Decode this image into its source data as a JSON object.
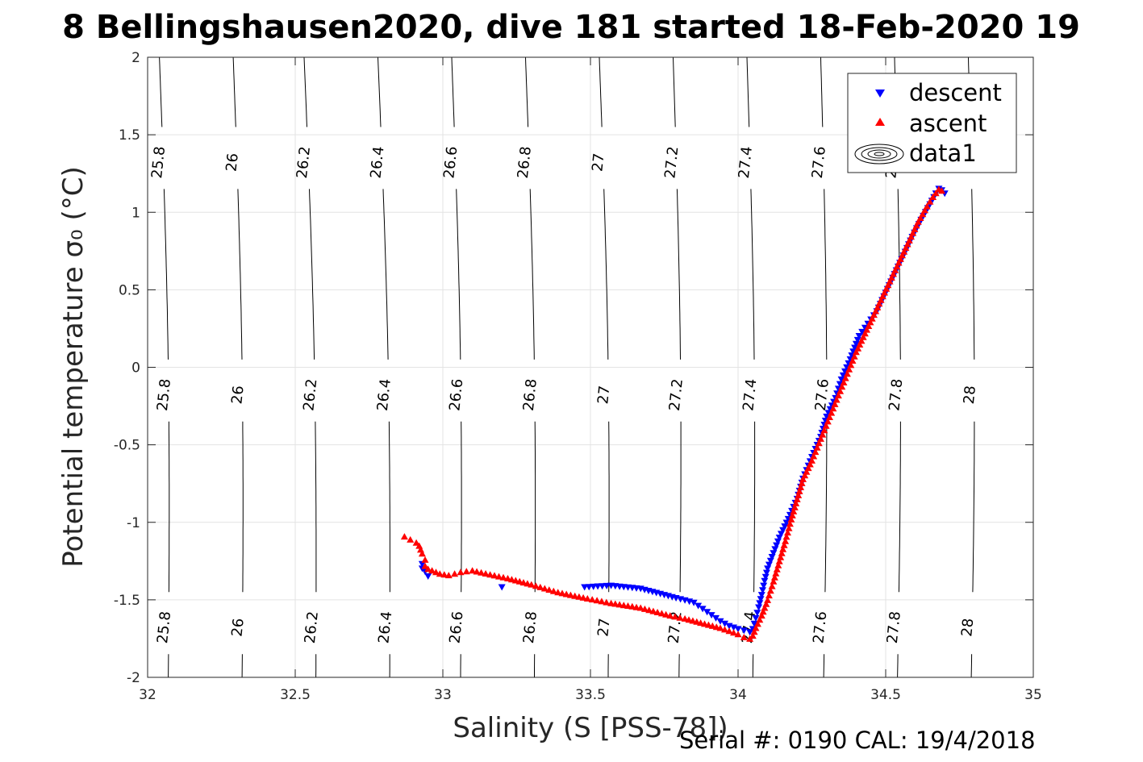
{
  "chart_data": {
    "type": "scatter",
    "title": "8 Bellingshausen2020, dive 181 started 18-Feb-2020 19",
    "xlabel": "Salinity (S [PSS-78])",
    "ylabel": "Potential temperature σ₀ (°C)",
    "xlim": [
      32,
      35
    ],
    "ylim": [
      -2,
      2
    ],
    "x_ticks": [
      "32",
      "32.5",
      "33",
      "33.5",
      "34",
      "34.5",
      "35"
    ],
    "y_ticks": [
      "-2",
      "-1.5",
      "-1",
      "-0.5",
      "0",
      "0.5",
      "1",
      "1.5",
      "2"
    ],
    "grid": true,
    "legend": {
      "placement": "top-right",
      "entries": [
        {
          "label": "descent",
          "color": "#0000ff",
          "marker": "triangle-down"
        },
        {
          "label": "ascent",
          "color": "#ff0000",
          "marker": "triangle-up"
        },
        {
          "label": "data1",
          "color": "#000000",
          "marker": "contour"
        }
      ]
    },
    "contours": [
      {
        "label": "25.8",
        "s_at_2": 32.04,
        "s_at_m2": 32.07
      },
      {
        "label": "26",
        "s_at_2": 32.29,
        "s_at_m2": 32.32
      },
      {
        "label": "26.2",
        "s_at_2": 32.53,
        "s_at_m2": 32.57
      },
      {
        "label": "26.4",
        "s_at_2": 32.78,
        "s_at_m2": 32.82
      },
      {
        "label": "26.6",
        "s_at_2": 33.03,
        "s_at_m2": 33.06
      },
      {
        "label": "26.8",
        "s_at_2": 33.28,
        "s_at_m2": 33.31
      },
      {
        "label": "27",
        "s_at_2": 33.53,
        "s_at_m2": 33.56
      },
      {
        "label": "27.2",
        "s_at_2": 33.78,
        "s_at_m2": 33.8
      },
      {
        "label": "27.4",
        "s_at_2": 34.03,
        "s_at_m2": 34.05
      },
      {
        "label": "27.6",
        "s_at_2": 34.28,
        "s_at_m2": 34.29
      },
      {
        "label": "27.8",
        "s_at_2": 34.53,
        "s_at_m2": 34.54
      },
      {
        "label": "28",
        "s_at_2": 34.78,
        "s_at_m2": 34.79
      }
    ],
    "series": [
      {
        "name": "descent",
        "color": "#0000ff",
        "marker": "triangle-down",
        "x": [
          32.93,
          32.93,
          32.94,
          32.95,
          33.2,
          33.48,
          33.57,
          33.67,
          33.79,
          33.85,
          33.88,
          33.91,
          33.94,
          33.97,
          34.0,
          34.02,
          34.04,
          34.05,
          34.06,
          34.07,
          34.08,
          34.09,
          34.1,
          34.12,
          34.14,
          34.17,
          34.2,
          34.22,
          34.25,
          34.28,
          34.3,
          34.33,
          34.35,
          34.38,
          34.41,
          34.44,
          34.47,
          34.5,
          34.53,
          34.56,
          34.59,
          34.62,
          34.65,
          34.67,
          34.68,
          34.69,
          34.7
        ],
        "y": [
          -1.27,
          -1.3,
          -1.32,
          -1.35,
          -1.42,
          -1.42,
          -1.41,
          -1.43,
          -1.49,
          -1.52,
          -1.56,
          -1.6,
          -1.64,
          -1.67,
          -1.69,
          -1.7,
          -1.71,
          -1.69,
          -1.62,
          -1.55,
          -1.47,
          -1.38,
          -1.3,
          -1.2,
          -1.1,
          -0.98,
          -0.85,
          -0.72,
          -0.58,
          -0.45,
          -0.32,
          -0.2,
          -0.08,
          0.05,
          0.2,
          0.28,
          0.36,
          0.48,
          0.6,
          0.72,
          0.84,
          0.95,
          1.05,
          1.12,
          1.15,
          1.14,
          1.12
        ]
      },
      {
        "name": "ascent",
        "color": "#ff0000",
        "marker": "triangle-up",
        "x": [
          32.87,
          32.89,
          32.91,
          32.92,
          32.93,
          32.94,
          32.94,
          32.95,
          32.99,
          33.02,
          33.04,
          33.06,
          33.1,
          33.22,
          33.26,
          33.3,
          33.39,
          33.49,
          33.57,
          33.67,
          33.77,
          33.82,
          33.86,
          33.9,
          33.94,
          33.97,
          34.0,
          34.02,
          34.04,
          34.05,
          34.06,
          34.08,
          34.1,
          34.12,
          34.14,
          34.16,
          34.18,
          34.2,
          34.22,
          34.25,
          34.28,
          34.31,
          34.34,
          34.37,
          34.4,
          34.43,
          34.46,
          34.49,
          34.52,
          34.55,
          34.58,
          34.61,
          34.64,
          34.66,
          34.68,
          34.69
        ],
        "y": [
          -1.09,
          -1.11,
          -1.13,
          -1.15,
          -1.2,
          -1.24,
          -1.28,
          -1.3,
          -1.33,
          -1.34,
          -1.33,
          -1.32,
          -1.31,
          -1.36,
          -1.38,
          -1.4,
          -1.45,
          -1.49,
          -1.52,
          -1.55,
          -1.6,
          -1.62,
          -1.64,
          -1.66,
          -1.68,
          -1.7,
          -1.72,
          -1.74,
          -1.75,
          -1.73,
          -1.68,
          -1.6,
          -1.5,
          -1.38,
          -1.25,
          -1.12,
          -0.98,
          -0.85,
          -0.72,
          -0.6,
          -0.46,
          -0.32,
          -0.18,
          -0.04,
          0.1,
          0.22,
          0.34,
          0.46,
          0.58,
          0.7,
          0.82,
          0.94,
          1.04,
          1.1,
          1.15,
          1.14
        ]
      }
    ]
  },
  "footer": {
    "text": "Serial #: 0190  CAL: 19/4/2018"
  }
}
